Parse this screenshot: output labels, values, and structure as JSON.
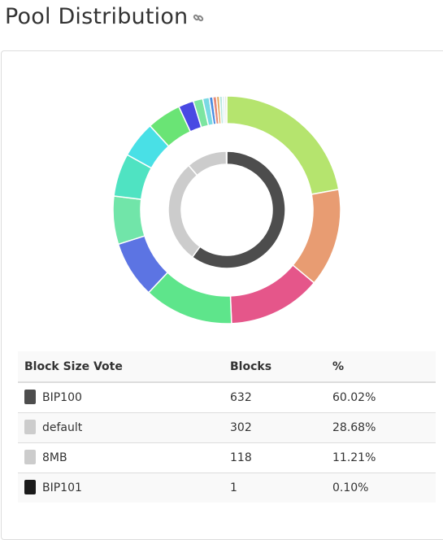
{
  "page": {
    "title": "Pool Distribution",
    "link_icon": "link-icon"
  },
  "chart_data": {
    "type": "pie",
    "style": "nested-donut",
    "outer_ring": {
      "description_values_in_percent_of_blocks": true,
      "slices": [
        {
          "value": 21.4,
          "color": "#b5e46e"
        },
        {
          "value": 13.5,
          "color": "#e89c72"
        },
        {
          "value": 12.8,
          "color": "#e5568a"
        },
        {
          "value": 12.3,
          "color": "#5ee58b"
        },
        {
          "value": 7.8,
          "color": "#5c74e3"
        },
        {
          "value": 6.6,
          "color": "#71e5a9"
        },
        {
          "value": 5.9,
          "color": "#4fe3c2"
        },
        {
          "value": 5.0,
          "color": "#49e0e6"
        },
        {
          "value": 4.7,
          "color": "#6ae475"
        },
        {
          "value": 2.1,
          "color": "#4949e3"
        },
        {
          "value": 1.3,
          "color": "#7ce5a0"
        },
        {
          "value": 0.9,
          "color": "#7ad9e4"
        },
        {
          "value": 0.5,
          "color": "#4a8be0"
        },
        {
          "value": 0.5,
          "color": "#e58a7a"
        },
        {
          "value": 0.4,
          "color": "#e5a75a"
        },
        {
          "value": 0.4,
          "color": "#b8e8e0"
        },
        {
          "value": 0.3,
          "color": "#d0e8f0"
        },
        {
          "value": 0.3,
          "color": "#e8e8d8"
        }
      ]
    },
    "inner_ring": {
      "slices": [
        {
          "label": "BIP100",
          "value": 632,
          "color": "#4d4d4d"
        },
        {
          "label": "default",
          "value": 302,
          "color": "#cccccc"
        },
        {
          "label": "8MB",
          "value": 118,
          "color": "#cccccc"
        },
        {
          "label": "BIP101",
          "value": 1,
          "color": "#1a1a1a"
        }
      ]
    }
  },
  "table": {
    "headers": {
      "name": "Block Size Vote",
      "blocks": "Blocks",
      "percent": "%"
    },
    "rows": [
      {
        "name": "BIP100",
        "blocks": "632",
        "percent": "60.02%",
        "color": "#4d4d4d"
      },
      {
        "name": "default",
        "blocks": "302",
        "percent": "28.68%",
        "color": "#cccccc"
      },
      {
        "name": "8MB",
        "blocks": "118",
        "percent": "11.21%",
        "color": "#cccccc"
      },
      {
        "name": "BIP101",
        "blocks": "1",
        "percent": "0.10%",
        "color": "#1a1a1a"
      }
    ]
  }
}
